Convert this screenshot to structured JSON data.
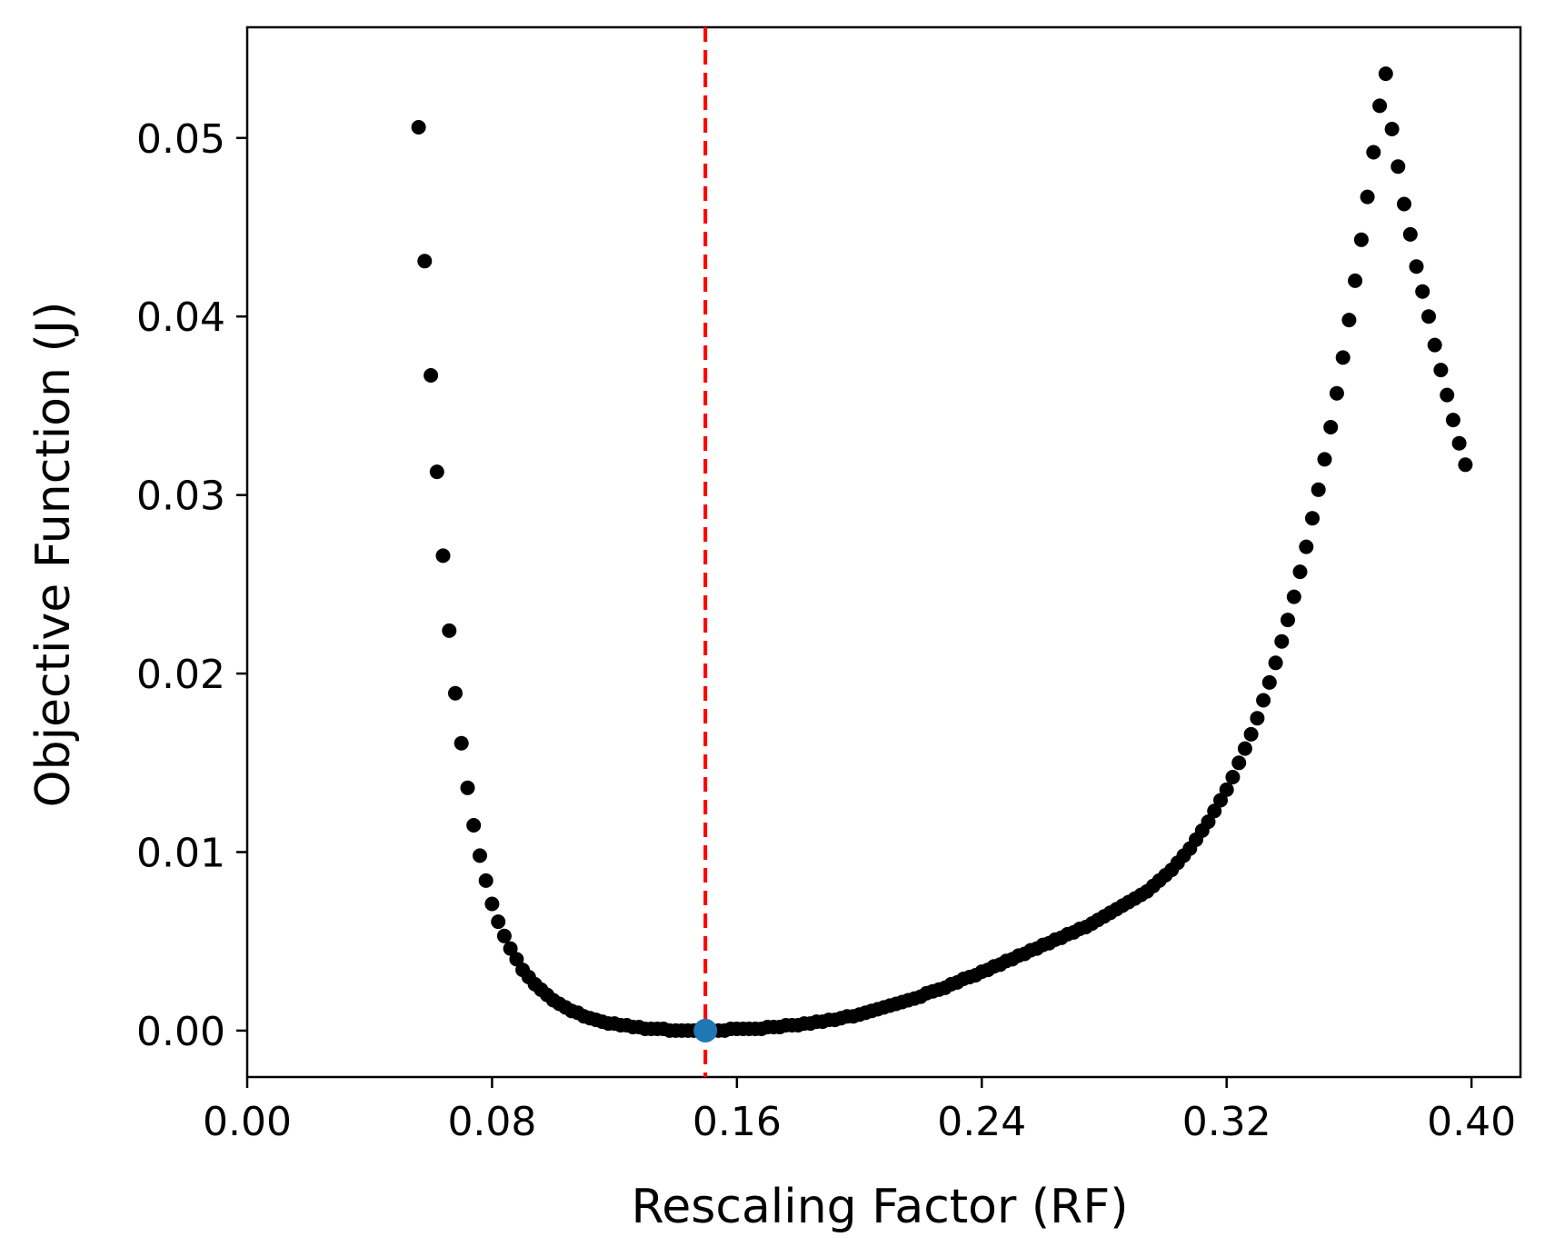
{
  "chart_data": {
    "type": "scatter",
    "xlabel": "Rescaling Factor (RF)",
    "ylabel": "Objective Function (J)",
    "xlim": [
      0.0,
      0.416
    ],
    "ylim": [
      -0.0026,
      0.0562
    ],
    "x_ticks": [
      0.0,
      0.08,
      0.16,
      0.24,
      0.32,
      0.4
    ],
    "x_tick_labels": [
      "0.00",
      "0.08",
      "0.16",
      "0.24",
      "0.32",
      "0.40"
    ],
    "y_ticks": [
      0.0,
      0.01,
      0.02,
      0.03,
      0.04,
      0.05
    ],
    "y_tick_labels": [
      "0.00",
      "0.01",
      "0.02",
      "0.03",
      "0.04",
      "0.05"
    ],
    "grid": false,
    "legend": "none",
    "colors": {
      "points": "#000000",
      "optimum": "#1f77b4",
      "reference_line": "#ff0000",
      "axes": "#000000"
    },
    "series": [
      {
        "marker": "small filled circle",
        "points": [
          [
            0.056,
            0.0506
          ],
          [
            0.058,
            0.0431
          ],
          [
            0.06,
            0.0367
          ],
          [
            0.062,
            0.0313
          ],
          [
            0.064,
            0.0266
          ],
          [
            0.066,
            0.0224
          ],
          [
            0.068,
            0.0189
          ],
          [
            0.07,
            0.0161
          ],
          [
            0.072,
            0.0136
          ],
          [
            0.074,
            0.0115
          ],
          [
            0.076,
            0.0098
          ],
          [
            0.078,
            0.0084
          ],
          [
            0.08,
            0.0071
          ],
          [
            0.082,
            0.0061
          ],
          [
            0.084,
            0.0053
          ],
          [
            0.086,
            0.0046
          ],
          [
            0.088,
            0.004
          ],
          [
            0.09,
            0.0034
          ],
          [
            0.092,
            0.003
          ],
          [
            0.094,
            0.0026
          ],
          [
            0.096,
            0.0023
          ],
          [
            0.098,
            0.002
          ],
          [
            0.1,
            0.0017
          ],
          [
            0.102,
            0.0015
          ],
          [
            0.104,
            0.0013
          ],
          [
            0.106,
            0.0011
          ],
          [
            0.108,
            0.001
          ],
          [
            0.11,
            0.0008
          ],
          [
            0.112,
            0.0007
          ],
          [
            0.114,
            0.0006
          ],
          [
            0.116,
            0.0005
          ],
          [
            0.118,
            0.0004
          ],
          [
            0.12,
            0.0004
          ],
          [
            0.122,
            0.0003
          ],
          [
            0.124,
            0.0003
          ],
          [
            0.126,
            0.0002
          ],
          [
            0.128,
            0.0002
          ],
          [
            0.13,
            0.0001
          ],
          [
            0.132,
            0.0001
          ],
          [
            0.134,
            0.0001
          ],
          [
            0.136,
            0.0001
          ],
          [
            0.138,
            0.0
          ],
          [
            0.14,
            0.0
          ],
          [
            0.142,
            0.0
          ],
          [
            0.144,
            0.0
          ],
          [
            0.146,
            0.0
          ],
          [
            0.148,
            0.0
          ],
          [
            0.152,
            0.0
          ],
          [
            0.154,
            0.0
          ],
          [
            0.156,
            0.0
          ],
          [
            0.158,
            0.0001
          ],
          [
            0.16,
            0.0001
          ],
          [
            0.162,
            0.0001
          ],
          [
            0.164,
            0.0001
          ],
          [
            0.166,
            0.0001
          ],
          [
            0.168,
            0.0001
          ],
          [
            0.17,
            0.0002
          ],
          [
            0.172,
            0.0002
          ],
          [
            0.174,
            0.0002
          ],
          [
            0.176,
            0.0003
          ],
          [
            0.178,
            0.0003
          ],
          [
            0.18,
            0.0003
          ],
          [
            0.182,
            0.0004
          ],
          [
            0.184,
            0.0004
          ],
          [
            0.186,
            0.0005
          ],
          [
            0.188,
            0.0005
          ],
          [
            0.19,
            0.0006
          ],
          [
            0.192,
            0.0006
          ],
          [
            0.194,
            0.0007
          ],
          [
            0.196,
            0.0008
          ],
          [
            0.198,
            0.0008
          ],
          [
            0.2,
            0.0009
          ],
          [
            0.202,
            0.001
          ],
          [
            0.204,
            0.0011
          ],
          [
            0.206,
            0.0012
          ],
          [
            0.208,
            0.0013
          ],
          [
            0.21,
            0.0014
          ],
          [
            0.212,
            0.0015
          ],
          [
            0.214,
            0.0016
          ],
          [
            0.216,
            0.0017
          ],
          [
            0.218,
            0.0018
          ],
          [
            0.22,
            0.0019
          ],
          [
            0.222,
            0.0021
          ],
          [
            0.224,
            0.0022
          ],
          [
            0.226,
            0.0023
          ],
          [
            0.228,
            0.0024
          ],
          [
            0.23,
            0.0026
          ],
          [
            0.232,
            0.0027
          ],
          [
            0.234,
            0.0029
          ],
          [
            0.236,
            0.003
          ],
          [
            0.238,
            0.0031
          ],
          [
            0.24,
            0.0033
          ],
          [
            0.242,
            0.0034
          ],
          [
            0.244,
            0.0036
          ],
          [
            0.246,
            0.0037
          ],
          [
            0.248,
            0.0039
          ],
          [
            0.25,
            0.004
          ],
          [
            0.252,
            0.0042
          ],
          [
            0.254,
            0.0043
          ],
          [
            0.256,
            0.0045
          ],
          [
            0.258,
            0.0046
          ],
          [
            0.26,
            0.0048
          ],
          [
            0.262,
            0.0049
          ],
          [
            0.264,
            0.0051
          ],
          [
            0.266,
            0.0052
          ],
          [
            0.268,
            0.0054
          ],
          [
            0.27,
            0.0055
          ],
          [
            0.272,
            0.0057
          ],
          [
            0.274,
            0.0058
          ],
          [
            0.276,
            0.006
          ],
          [
            0.278,
            0.0062
          ],
          [
            0.28,
            0.0064
          ],
          [
            0.282,
            0.0066
          ],
          [
            0.284,
            0.0068
          ],
          [
            0.286,
            0.007
          ],
          [
            0.288,
            0.0072
          ],
          [
            0.29,
            0.0074
          ],
          [
            0.292,
            0.0076
          ],
          [
            0.294,
            0.0078
          ],
          [
            0.296,
            0.0081
          ],
          [
            0.298,
            0.0084
          ],
          [
            0.3,
            0.0087
          ],
          [
            0.302,
            0.009
          ],
          [
            0.304,
            0.0094
          ],
          [
            0.306,
            0.0098
          ],
          [
            0.308,
            0.0102
          ],
          [
            0.31,
            0.0107
          ],
          [
            0.312,
            0.0112
          ],
          [
            0.314,
            0.0117
          ],
          [
            0.316,
            0.0123
          ],
          [
            0.318,
            0.0129
          ],
          [
            0.32,
            0.0135
          ],
          [
            0.322,
            0.0142
          ],
          [
            0.324,
            0.015
          ],
          [
            0.326,
            0.0158
          ],
          [
            0.328,
            0.0166
          ],
          [
            0.33,
            0.0175
          ],
          [
            0.332,
            0.0185
          ],
          [
            0.334,
            0.0195
          ],
          [
            0.336,
            0.0206
          ],
          [
            0.338,
            0.0218
          ],
          [
            0.34,
            0.023
          ],
          [
            0.342,
            0.0243
          ],
          [
            0.344,
            0.0257
          ],
          [
            0.346,
            0.0271
          ],
          [
            0.348,
            0.0287
          ],
          [
            0.35,
            0.0303
          ],
          [
            0.352,
            0.032
          ],
          [
            0.354,
            0.0338
          ],
          [
            0.356,
            0.0357
          ],
          [
            0.358,
            0.0377
          ],
          [
            0.36,
            0.0398
          ],
          [
            0.362,
            0.042
          ],
          [
            0.364,
            0.0443
          ],
          [
            0.366,
            0.0467
          ],
          [
            0.368,
            0.0492
          ],
          [
            0.37,
            0.0518
          ],
          [
            0.372,
            0.0536
          ],
          [
            0.374,
            0.0505
          ],
          [
            0.376,
            0.0484
          ],
          [
            0.378,
            0.0463
          ],
          [
            0.38,
            0.0446
          ],
          [
            0.382,
            0.0428
          ],
          [
            0.384,
            0.0414
          ],
          [
            0.386,
            0.04
          ],
          [
            0.388,
            0.0384
          ],
          [
            0.39,
            0.037
          ],
          [
            0.392,
            0.0356
          ],
          [
            0.394,
            0.0342
          ],
          [
            0.396,
            0.0329
          ],
          [
            0.398,
            0.0317
          ]
        ]
      }
    ],
    "optimum_point": [
      0.1497,
      0.0
    ],
    "reference_line_x": 0.1497
  }
}
